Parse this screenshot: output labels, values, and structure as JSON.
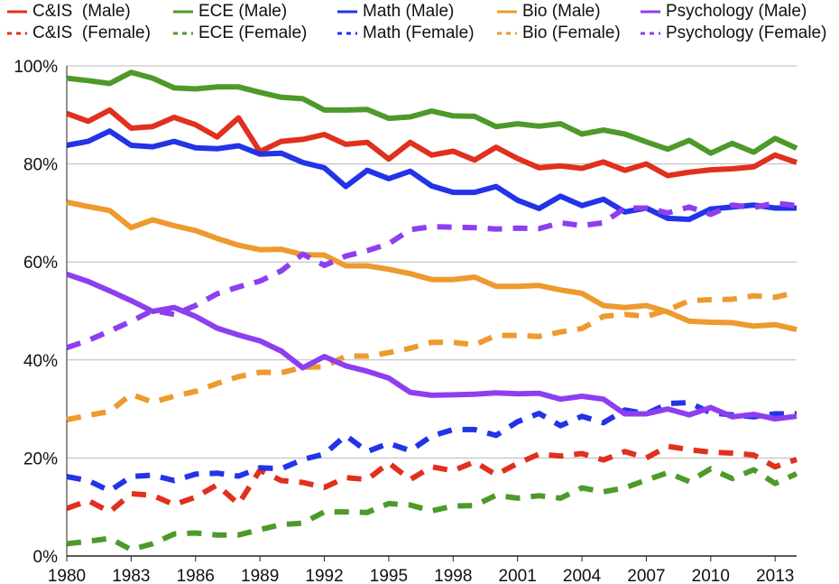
{
  "chart_data": {
    "type": "line",
    "title": "",
    "xlabel": "",
    "ylabel": "",
    "xlim": [
      1980,
      2014
    ],
    "ylim": [
      0,
      100
    ],
    "x_ticks": [
      1980,
      1983,
      1986,
      1989,
      1992,
      1995,
      1998,
      2001,
      2004,
      2007,
      2010,
      2013
    ],
    "x_tick_labels": [
      "1980",
      "1983",
      "1986",
      "1989",
      "1992",
      "1995",
      "1998",
      "2001",
      "2004",
      "2007",
      "2010",
      "2013"
    ],
    "y_ticks": [
      0,
      20,
      40,
      60,
      80,
      100
    ],
    "y_tick_labels": [
      "0%",
      "20%",
      "40%",
      "60%",
      "80%",
      "100%"
    ],
    "grid": "horizontal",
    "legend_position": "top",
    "x": [
      1980,
      1981,
      1982,
      1983,
      1984,
      1985,
      1986,
      1987,
      1988,
      1989,
      1990,
      1991,
      1992,
      1993,
      1994,
      1995,
      1996,
      1997,
      1998,
      1999,
      2000,
      2001,
      2002,
      2003,
      2004,
      2005,
      2006,
      2007,
      2008,
      2009,
      2010,
      2011,
      2012,
      2013,
      2014
    ],
    "series": [
      {
        "name": "C&IS  (Male)",
        "color": "#e0301e",
        "style": "solid",
        "values": [
          90.3,
          88.7,
          91.0,
          87.3,
          87.6,
          89.5,
          88.0,
          85.5,
          89.4,
          82.5,
          84.6,
          85.0,
          86.0,
          84.0,
          84.4,
          81.0,
          84.4,
          81.8,
          82.6,
          80.8,
          83.4,
          81.1,
          79.2,
          79.6,
          79.1,
          80.4,
          78.7,
          80.0,
          77.6,
          78.3,
          78.8,
          79.0,
          79.4,
          81.8,
          80.3
        ]
      },
      {
        "name": "C&IS  (Female)",
        "color": "#e0301e",
        "style": "dashed",
        "values": [
          9.7,
          11.3,
          9.0,
          12.7,
          12.4,
          10.5,
          12.0,
          14.5,
          10.6,
          17.5,
          15.4,
          15.0,
          14.0,
          16.0,
          15.6,
          19.0,
          15.6,
          18.2,
          17.4,
          19.2,
          16.6,
          18.9,
          20.8,
          20.4,
          20.9,
          19.6,
          21.3,
          20.0,
          22.4,
          21.7,
          21.2,
          21.0,
          20.6,
          18.2,
          19.7
        ]
      },
      {
        "name": "ECE (Male)",
        "color": "#4d9a2a",
        "style": "solid",
        "values": [
          97.5,
          97.0,
          96.4,
          98.7,
          97.5,
          95.5,
          95.3,
          95.7,
          95.7,
          94.6,
          93.6,
          93.3,
          91.0,
          91.0,
          91.1,
          89.3,
          89.6,
          90.8,
          89.8,
          89.7,
          87.6,
          88.2,
          87.7,
          88.2,
          86.1,
          86.9,
          86.1,
          84.5,
          83.0,
          84.8,
          82.2,
          84.2,
          82.4,
          85.2,
          83.2
        ]
      },
      {
        "name": "ECE (Female)",
        "color": "#4d9a2a",
        "style": "dashed",
        "values": [
          2.5,
          3.0,
          3.6,
          1.3,
          2.5,
          4.5,
          4.7,
          4.3,
          4.3,
          5.4,
          6.4,
          6.7,
          9.0,
          9.0,
          8.9,
          10.7,
          10.4,
          9.2,
          10.2,
          10.3,
          12.4,
          11.8,
          12.3,
          11.8,
          13.9,
          13.1,
          13.9,
          15.5,
          17.0,
          15.2,
          17.8,
          15.8,
          17.6,
          14.8,
          16.8
        ]
      },
      {
        "name": "Math (Male)",
        "color": "#2233e8",
        "style": "solid",
        "values": [
          83.8,
          84.6,
          86.7,
          83.8,
          83.5,
          84.6,
          83.3,
          83.1,
          83.7,
          82.0,
          82.2,
          80.3,
          79.2,
          75.4,
          78.7,
          77.0,
          78.5,
          75.5,
          74.2,
          74.2,
          75.4,
          72.6,
          70.9,
          73.4,
          71.5,
          72.8,
          70.2,
          71.0,
          68.9,
          68.7,
          70.8,
          71.2,
          71.6,
          71.0,
          71.0
        ]
      },
      {
        "name": "Math (Female)",
        "color": "#2233e8",
        "style": "dashed",
        "values": [
          16.2,
          15.4,
          13.3,
          16.2,
          16.5,
          15.4,
          16.7,
          16.9,
          16.3,
          18.0,
          17.8,
          19.7,
          20.8,
          24.6,
          21.3,
          23.0,
          21.5,
          24.5,
          25.8,
          25.8,
          24.6,
          27.4,
          29.1,
          26.6,
          28.5,
          27.2,
          29.8,
          29.0,
          31.1,
          31.3,
          29.2,
          28.8,
          28.4,
          29.0,
          29.0
        ]
      },
      {
        "name": "Bio (Male)",
        "color": "#ed9a2e",
        "style": "solid",
        "values": [
          72.2,
          71.3,
          70.5,
          67.0,
          68.6,
          67.4,
          66.4,
          64.8,
          63.4,
          62.5,
          62.6,
          61.5,
          61.4,
          59.2,
          59.2,
          58.5,
          57.6,
          56.4,
          56.4,
          56.9,
          55.0,
          55.0,
          55.2,
          54.3,
          53.6,
          51.1,
          50.7,
          51.1,
          49.8,
          47.9,
          47.7,
          47.6,
          46.9,
          47.2,
          46.2
        ]
      },
      {
        "name": "Bio (Female)",
        "color": "#ed9a2e",
        "style": "dashed",
        "values": [
          27.8,
          28.7,
          29.5,
          33.0,
          31.4,
          32.6,
          33.6,
          35.2,
          36.6,
          37.5,
          37.4,
          38.5,
          38.6,
          40.8,
          40.8,
          41.5,
          42.4,
          43.6,
          43.6,
          43.1,
          45.0,
          45.0,
          44.8,
          45.7,
          46.4,
          48.9,
          49.3,
          48.9,
          50.2,
          52.1,
          52.3,
          52.4,
          53.1,
          52.8,
          53.8
        ]
      },
      {
        "name": "Psychology (Male)",
        "color": "#8d3ff0",
        "style": "solid",
        "values": [
          57.5,
          56.0,
          54.1,
          52.1,
          49.9,
          50.7,
          48.9,
          46.5,
          45.1,
          43.9,
          41.8,
          38.4,
          40.7,
          38.8,
          37.7,
          36.3,
          33.4,
          32.8,
          32.9,
          33.0,
          33.3,
          33.1,
          33.2,
          32.0,
          32.6,
          32.0,
          29.0,
          29.0,
          30.0,
          28.8,
          30.3,
          28.4,
          28.9,
          28.0,
          28.5
        ]
      },
      {
        "name": "Psychology (Female)",
        "color": "#8d3ff0",
        "style": "dashed",
        "values": [
          42.5,
          44.0,
          45.9,
          47.9,
          50.1,
          49.3,
          51.1,
          53.5,
          54.9,
          56.1,
          58.2,
          61.6,
          59.3,
          61.2,
          62.3,
          63.7,
          66.6,
          67.2,
          67.1,
          67.0,
          66.7,
          66.9,
          66.8,
          68.0,
          67.4,
          68.0,
          71.0,
          71.0,
          70.0,
          71.2,
          69.7,
          71.6,
          71.1,
          72.0,
          71.5
        ]
      }
    ]
  }
}
